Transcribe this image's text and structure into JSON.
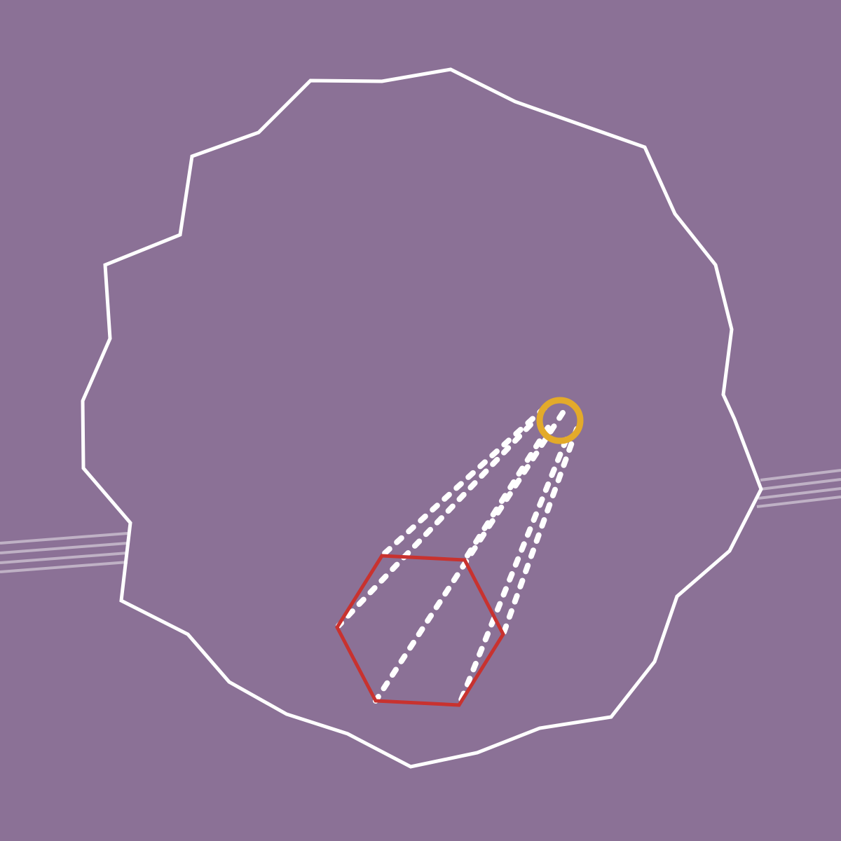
{
  "colors": {
    "background": "#8b7196",
    "arena_outline": "#ffffff",
    "target_outline": "#c8322f",
    "emitter_ring": "#e3aa2a",
    "beam": "#ffffff"
  },
  "icons": {
    "emitter": "ring-icon",
    "target": "hexagon-icon"
  }
}
